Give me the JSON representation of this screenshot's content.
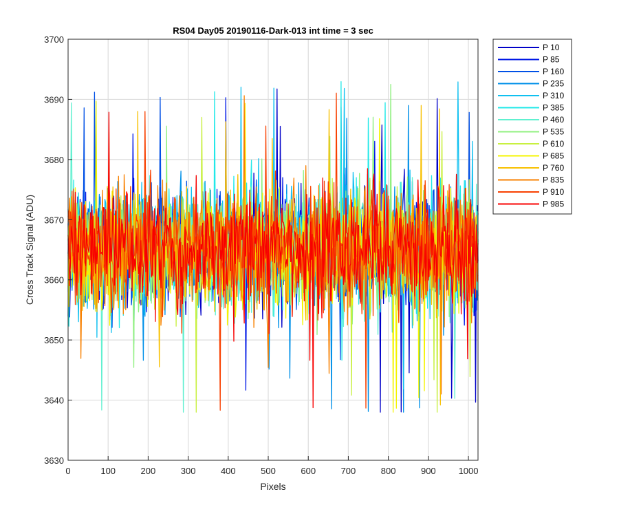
{
  "chart_data": {
    "type": "line",
    "title": "RS04 Day05 20190116-Dark-013 int time = 3 sec",
    "xlabel": "Pixels",
    "ylabel": "Cross Track Signal (ADU)",
    "xlim": [
      0,
      1024
    ],
    "ylim": [
      3630,
      3700
    ],
    "xticks": [
      0,
      100,
      200,
      300,
      400,
      500,
      600,
      700,
      800,
      900,
      1000
    ],
    "yticks": [
      3630,
      3640,
      3650,
      3660,
      3670,
      3680,
      3690,
      3700
    ],
    "grid": true,
    "legend_position": "outside-top-right",
    "noise": {
      "center": 3665,
      "spread": 7.5,
      "outlier_min": 3638,
      "outlier_max": 3697
    },
    "series": [
      {
        "name": "P 10",
        "color": "#0000c8"
      },
      {
        "name": "P 85",
        "color": "#0018e6"
      },
      {
        "name": "P 160",
        "color": "#0050e6"
      },
      {
        "name": "P 235",
        "color": "#0090e8"
      },
      {
        "name": "P 310",
        "color": "#10c0f0"
      },
      {
        "name": "P 385",
        "color": "#20e8e8"
      },
      {
        "name": "P 460",
        "color": "#60f0d0"
      },
      {
        "name": "P 535",
        "color": "#90f080"
      },
      {
        "name": "P 610",
        "color": "#c8f040"
      },
      {
        "name": "P 685",
        "color": "#f4f400"
      },
      {
        "name": "P 760",
        "color": "#f8c000"
      },
      {
        "name": "P 835",
        "color": "#f88000"
      },
      {
        "name": "P 910",
        "color": "#f84000"
      },
      {
        "name": "P 985",
        "color": "#f80000"
      }
    ]
  }
}
